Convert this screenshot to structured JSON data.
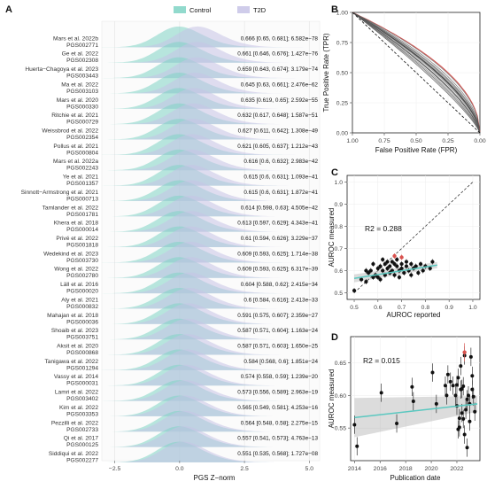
{
  "chart_data": [
    {
      "panel": "A",
      "type": "ridgeline",
      "legend": [
        {
          "name": "Control",
          "color": "#7fd3c4"
        },
        {
          "name": "T2D",
          "color": "#c7c3e6"
        }
      ],
      "xlabel": "PGS Z−norm",
      "xticks": [
        "−2.5",
        "0.0",
        "2.5",
        "5.0"
      ],
      "xlim": [
        -3,
        5.4
      ],
      "rows": [
        {
          "name": "Mars et al. 2022b",
          "id": "PGS002771",
          "stat": "0.666 [0.65, 0.681]; 6.582e−78",
          "shift": 0.72
        },
        {
          "name": "Ge et al. 2022",
          "id": "PGS002308",
          "stat": "0.661 [0.646, 0.676]; 1.427e−76",
          "shift": 0.7
        },
        {
          "name": "Huerta−Chagoya et al. 2023",
          "id": "PGS003443",
          "stat": "0.659 [0.643, 0.674]; 3.179e−74",
          "shift": 0.69
        },
        {
          "name": "Ma et al. 2022",
          "id": "PGS003103",
          "stat": "0.645 [0.63, 0.661]; 2.476e−62",
          "shift": 0.62
        },
        {
          "name": "Mars et al. 2020",
          "id": "PGS000330",
          "stat": "0.635 [0.619, 0.65]; 2.592e−55",
          "shift": 0.58
        },
        {
          "name": "Ritchie et al. 2021",
          "id": "PGS000729",
          "stat": "0.632 [0.617, 0.648]; 1.587e−51",
          "shift": 0.56
        },
        {
          "name": "Weissbrod et al. 2022",
          "id": "PGS002354",
          "stat": "0.627 [0.611, 0.642]; 1.308e−49",
          "shift": 0.54
        },
        {
          "name": "Pollus et al. 2021",
          "id": "PGS000804",
          "stat": "0.621 [0.605, 0.637]; 1.212e−43",
          "shift": 0.51
        },
        {
          "name": "Mars et al. 2022a",
          "id": "PGS002243",
          "stat": "0.616 [0.6, 0.632]; 2.983e−42",
          "shift": 0.49
        },
        {
          "name": "Ye et al. 2021",
          "id": "PGS001357",
          "stat": "0.615 [0.6, 0.631]; 1.093e−41",
          "shift": 0.48
        },
        {
          "name": "Sinnott−Armstrong et al. 2021",
          "id": "PGS000713",
          "stat": "0.615 [0.6, 0.631]; 1.872e−41",
          "shift": 0.48
        },
        {
          "name": "Tamlander et al. 2022",
          "id": "PGS001781",
          "stat": "0.614 [0.598, 0.63]; 4.505e−42",
          "shift": 0.47
        },
        {
          "name": "Khera et al. 2018",
          "id": "PGS000014",
          "stat": "0.613 [0.597, 0.629]; 4.343e−41",
          "shift": 0.47
        },
        {
          "name": "Privé et al. 2022",
          "id": "PGS001818",
          "stat": "0.61 [0.594, 0.626]; 3.229e−37",
          "shift": 0.45
        },
        {
          "name": "Wedekind et al. 2023",
          "id": "PGS003730",
          "stat": "0.609 [0.593, 0.625]; 1.714e−38",
          "shift": 0.45
        },
        {
          "name": "Wong et al. 2022",
          "id": "PGS002780",
          "stat": "0.609 [0.593, 0.625]; 6.317e−39",
          "shift": 0.45
        },
        {
          "name": "Läll et al. 2016",
          "id": "PGS000020",
          "stat": "0.604 [0.588, 0.62]; 2.415e−34",
          "shift": 0.42
        },
        {
          "name": "Aly et al. 2021",
          "id": "PGS000832",
          "stat": "0.6 [0.584, 0.616]; 2.413e−33",
          "shift": 0.4
        },
        {
          "name": "Mahajan et al. 2018",
          "id": "PGS000036",
          "stat": "0.591 [0.575, 0.607]; 2.359e−27",
          "shift": 0.36
        },
        {
          "name": "Shoaib et al. 2023",
          "id": "PGS003751",
          "stat": "0.587 [0.571, 0.604]; 1.163e−24",
          "shift": 0.34
        },
        {
          "name": "Aksit et al. 2020",
          "id": "PGS000868",
          "stat": "0.587 [0.571, 0.603]; 1.650e−25",
          "shift": 0.34
        },
        {
          "name": "Tanigawa et al. 2022",
          "id": "PGS001294",
          "stat": "0.584 [0.568, 0.6]; 1.851e−24",
          "shift": 0.32
        },
        {
          "name": "Vassy et al. 2014",
          "id": "PGS000031",
          "stat": "0.574 [0.558, 0.59]; 1.239e−20",
          "shift": 0.28
        },
        {
          "name": "Lamri et al. 2022",
          "id": "PGS003402",
          "stat": "0.573 [0.556, 0.589]; 2.963e−19",
          "shift": 0.27
        },
        {
          "name": "Kim et al. 2022",
          "id": "PGS003353",
          "stat": "0.565 [0.549, 0.581]; 4.253e−16",
          "shift": 0.24
        },
        {
          "name": "Pezzilli et al. 2022",
          "id": "PGS002733",
          "stat": "0.564 [0.548, 0.58]; 2.275e−15",
          "shift": 0.23
        },
        {
          "name": "Qi et al. 2017",
          "id": "PGS000125",
          "stat": "0.557 [0.541, 0.573]; 4.763e−13",
          "shift": 0.2
        },
        {
          "name": "Siddiqui et al. 2022",
          "id": "PGS002277",
          "stat": "0.551 [0.535, 0.568]; 1.727e−08",
          "shift": 0.17
        }
      ]
    },
    {
      "panel": "B",
      "type": "line",
      "xlabel": "False Positive Rate (FPR)",
      "ylabel": "True Positive Rate (TPR)",
      "xticks": [
        "1.00",
        "0.75",
        "0.50",
        "0.25",
        "0.00"
      ],
      "yticks": [
        "0.00",
        "0.25",
        "0.50",
        "0.75",
        "1.00"
      ],
      "xlim": [
        1,
        0
      ],
      "ylim": [
        0,
        1
      ],
      "highlight_color": "#d9534f",
      "auc_range": [
        0.551,
        0.666
      ]
    },
    {
      "panel": "C",
      "type": "scatter",
      "xlabel": "AUROC reported",
      "ylabel": "AUROC measured",
      "xlim": [
        0.47,
        1.03
      ],
      "ylim": [
        0.47,
        1.03
      ],
      "xticks": [
        "0.5",
        "0.6",
        "0.7",
        "0.8",
        "0.9",
        "1.0"
      ],
      "yticks": [
        "0.5",
        "0.6",
        "0.7",
        "0.8",
        "0.9",
        "1.0"
      ],
      "r2_label": "R2 = 0.288",
      "fit": {
        "x0": 0.5,
        "y0": 0.565,
        "x1": 0.85,
        "y1": 0.625,
        "color": "#5bc8c0"
      },
      "points": [
        [
          0.5,
          0.51
        ],
        [
          0.53,
          0.56
        ],
        [
          0.55,
          0.55
        ],
        [
          0.56,
          0.59
        ],
        [
          0.57,
          0.6
        ],
        [
          0.58,
          0.57
        ],
        [
          0.59,
          0.58
        ],
        [
          0.6,
          0.61
        ],
        [
          0.6,
          0.57
        ],
        [
          0.61,
          0.62
        ],
        [
          0.62,
          0.6
        ],
        [
          0.62,
          0.65
        ],
        [
          0.63,
          0.58
        ],
        [
          0.63,
          0.63
        ],
        [
          0.64,
          0.61
        ],
        [
          0.64,
          0.64
        ],
        [
          0.65,
          0.59
        ],
        [
          0.65,
          0.62
        ],
        [
          0.66,
          0.64
        ],
        [
          0.66,
          0.6
        ],
        [
          0.67,
          0.63
        ],
        [
          0.67,
          0.58
        ],
        [
          0.68,
          0.62
        ],
        [
          0.68,
          0.65
        ],
        [
          0.69,
          0.6
        ],
        [
          0.7,
          0.63
        ],
        [
          0.7,
          0.61
        ],
        [
          0.71,
          0.59
        ],
        [
          0.72,
          0.64
        ],
        [
          0.72,
          0.62
        ],
        [
          0.73,
          0.6
        ],
        [
          0.74,
          0.63
        ],
        [
          0.75,
          0.61
        ],
        [
          0.76,
          0.62
        ],
        [
          0.77,
          0.59
        ],
        [
          0.78,
          0.63
        ],
        [
          0.79,
          0.6
        ],
        [
          0.8,
          0.62
        ],
        [
          0.82,
          0.61
        ],
        [
          0.83,
          0.64
        ],
        [
          0.55,
          0.6
        ],
        [
          0.58,
          0.63
        ],
        [
          0.61,
          0.56
        ],
        [
          0.69,
          0.57
        ],
        [
          0.74,
          0.58
        ]
      ],
      "highlights": [
        [
          0.67,
          0.666
        ],
        [
          0.7,
          0.66
        ]
      ]
    },
    {
      "panel": "D",
      "type": "scatter",
      "xlabel": "Publication date",
      "ylabel": "AUROC measured",
      "xlim": [
        2013.7,
        2023.8
      ],
      "ylim": [
        0.5,
        0.69
      ],
      "xticks": [
        "2014",
        "2016",
        "2018",
        "2020",
        "2022"
      ],
      "yticks": [
        "0.55",
        "0.60",
        "0.65"
      ],
      "r2_label": "R2 = 0.015",
      "fit": {
        "x0": 2014,
        "y0": 0.566,
        "x1": 2023.6,
        "y1": 0.587,
        "color": "#5bc8c0"
      },
      "points": [
        [
          2014.0,
          0.555
        ],
        [
          2014.2,
          0.522
        ],
        [
          2016.1,
          0.604
        ],
        [
          2017.3,
          0.557
        ],
        [
          2018.5,
          0.613
        ],
        [
          2018.6,
          0.591
        ],
        [
          2020.1,
          0.635
        ],
        [
          2020.4,
          0.587
        ],
        [
          2021.1,
          0.615
        ],
        [
          2021.2,
          0.6
        ],
        [
          2021.3,
          0.632
        ],
        [
          2021.5,
          0.621
        ],
        [
          2021.7,
          0.615
        ],
        [
          2022.0,
          0.616
        ],
        [
          2022.0,
          0.584
        ],
        [
          2022.1,
          0.627
        ],
        [
          2022.2,
          0.565
        ],
        [
          2022.2,
          0.551
        ],
        [
          2022.3,
          0.609
        ],
        [
          2022.3,
          0.645
        ],
        [
          2022.4,
          0.61
        ],
        [
          2022.4,
          0.573
        ],
        [
          2022.5,
          0.564
        ],
        [
          2022.5,
          0.614
        ],
        [
          2022.6,
          0.661
        ],
        [
          2022.7,
          0.578
        ],
        [
          2022.8,
          0.52
        ],
        [
          2022.8,
          0.594
        ],
        [
          2022.9,
          0.6
        ],
        [
          2023.0,
          0.587
        ],
        [
          2023.0,
          0.56
        ],
        [
          2023.1,
          0.659
        ],
        [
          2023.2,
          0.609
        ],
        [
          2023.3,
          0.598
        ],
        [
          2023.4,
          0.575
        ],
        [
          2022.1,
          0.548
        ],
        [
          2021.9,
          0.6
        ],
        [
          2022.6,
          0.54
        ],
        [
          2023.2,
          0.63
        ]
      ],
      "highlights": [
        [
          2022.6,
          0.666
        ]
      ]
    }
  ]
}
